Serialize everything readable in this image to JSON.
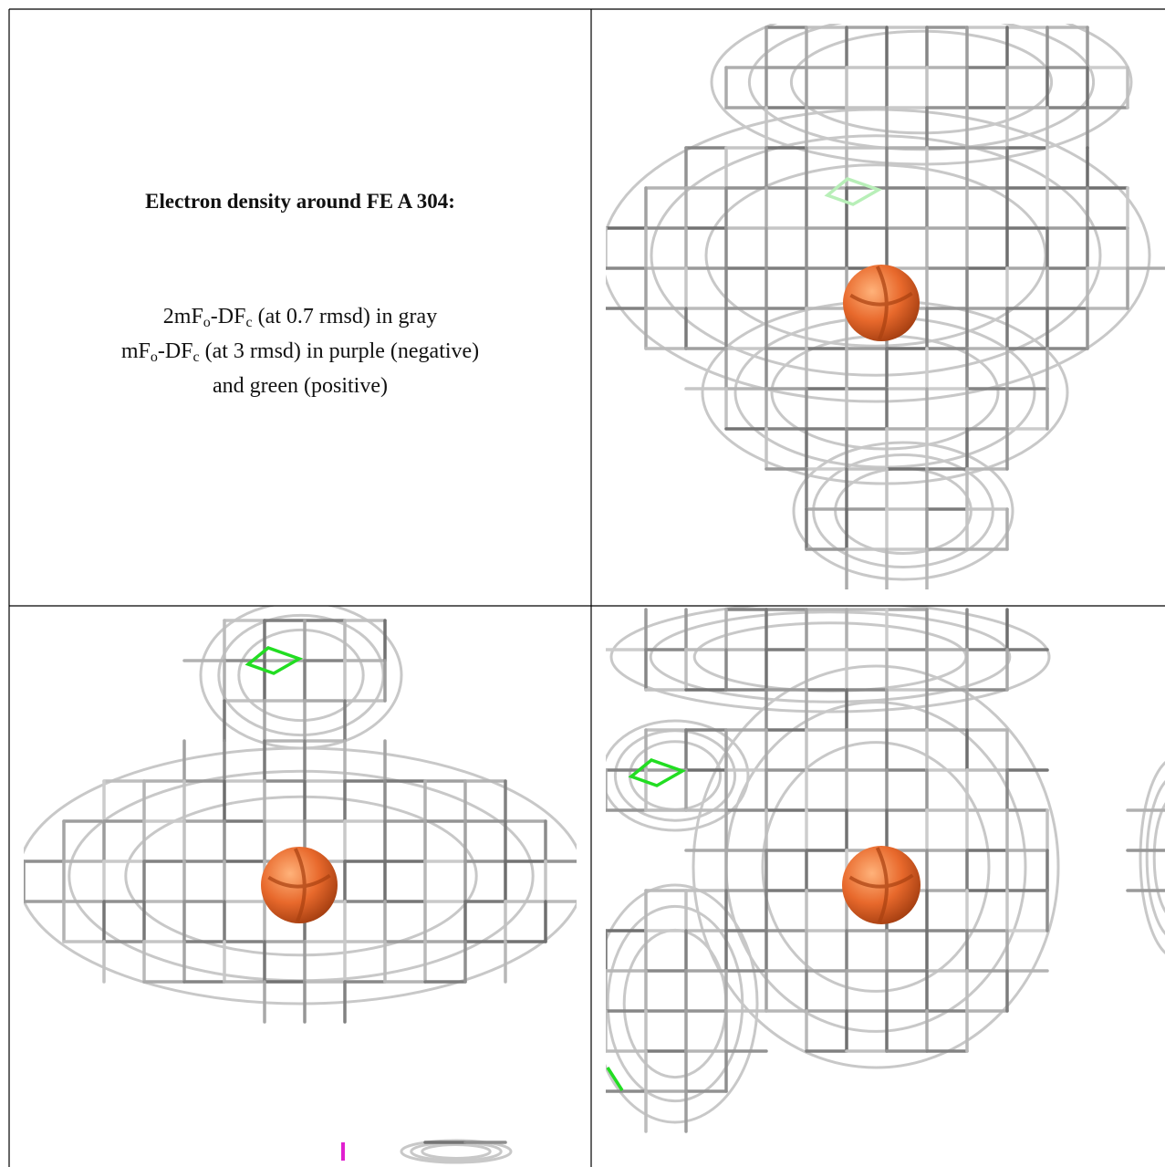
{
  "title": "Electron density around FE A 304:",
  "lines": [
    [
      {
        "text": "2mF"
      },
      {
        "text": "o",
        "subscript": true
      },
      {
        "text": "-DF"
      },
      {
        "text": "c",
        "subscript": true
      },
      {
        "text": " (at 0.7 rmsd) in gray"
      }
    ],
    [
      {
        "text": "mF"
      },
      {
        "text": "o",
        "subscript": true
      },
      {
        "text": "-DF"
      },
      {
        "text": "c",
        "subscript": true
      },
      {
        "text": " (at 3 rmsd) in purple (negative)"
      }
    ],
    [
      {
        "text": "and green (positive)"
      }
    ]
  ]
}
